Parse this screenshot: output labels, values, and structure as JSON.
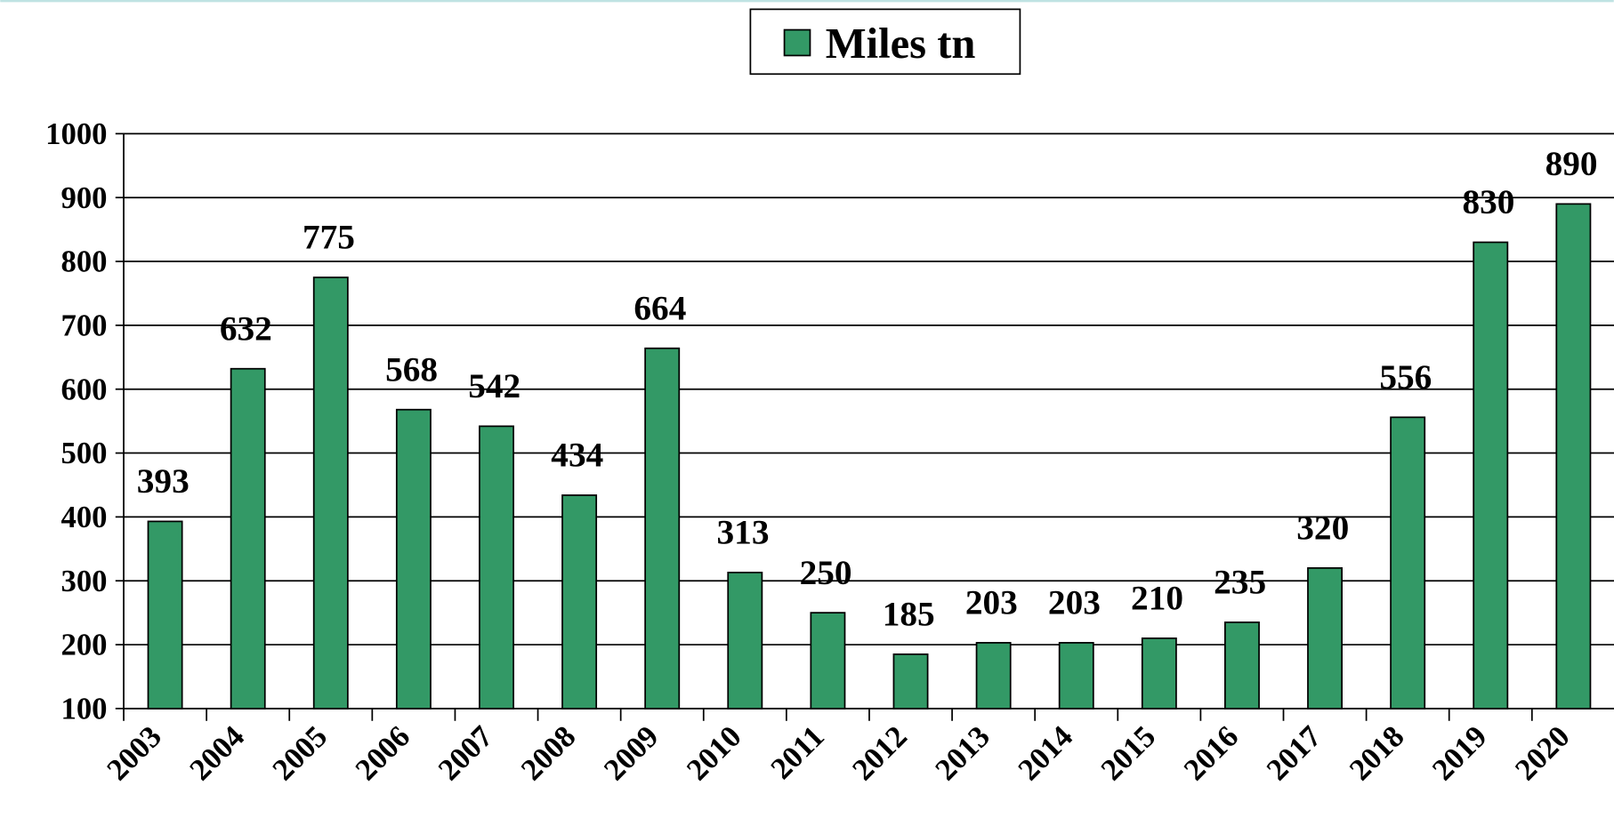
{
  "chart_data": {
    "type": "bar",
    "categories": [
      "2003",
      "2004",
      "2005",
      "2006",
      "2007",
      "2008",
      "2009",
      "2010",
      "2011",
      "2012",
      "2013",
      "2014",
      "2015",
      "2016",
      "2017",
      "2018",
      "2019",
      "2020"
    ],
    "series": [
      {
        "name": "Miles tn",
        "color": "#339966",
        "values": [
          393,
          632,
          775,
          568,
          542,
          434,
          664,
          313,
          250,
          185,
          203,
          203,
          210,
          235,
          320,
          556,
          830,
          890
        ]
      }
    ],
    "ylim": [
      100,
      1000
    ],
    "yticks": [
      100,
      200,
      300,
      400,
      500,
      600,
      700,
      800,
      900,
      1000
    ],
    "grid": true,
    "legend": "top"
  }
}
